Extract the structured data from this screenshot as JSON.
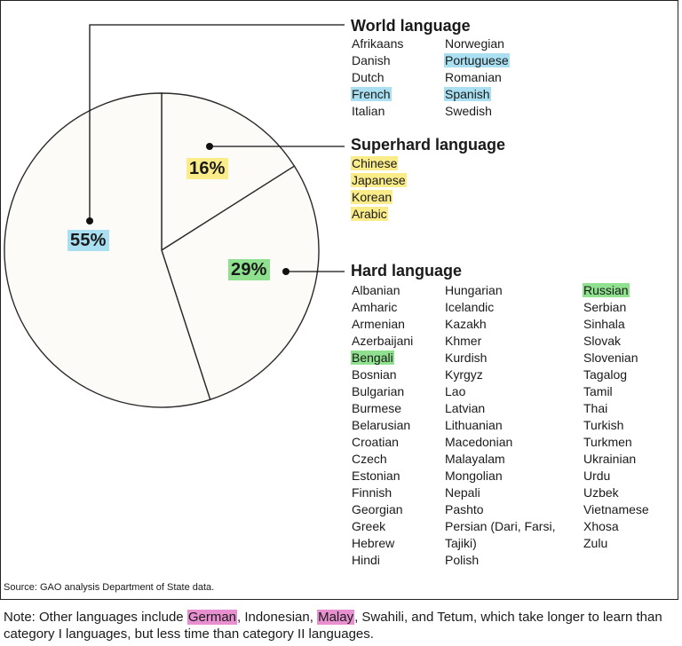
{
  "colors": {
    "world": "#a9dff0",
    "superhard": "#fbec8a",
    "hard": "#8fe08f",
    "note_highlight": "#e88fd0",
    "slice_fill": "#fdfbf8",
    "stroke": "#2a2a2a"
  },
  "chart_data": {
    "type": "pie",
    "slices": [
      {
        "category": "World language",
        "value": 55,
        "label": "55%",
        "color_key": "world"
      },
      {
        "category": "Superhard language",
        "value": 16,
        "label": "16%",
        "color_key": "superhard"
      },
      {
        "category": "Hard language",
        "value": 29,
        "label": "29%",
        "color_key": "hard"
      }
    ]
  },
  "groups": {
    "world": {
      "title": "World language",
      "columns": [
        [
          {
            "name": "Afrikaans"
          },
          {
            "name": "Danish"
          },
          {
            "name": "Dutch"
          },
          {
            "name": "French",
            "highlight": "world"
          },
          {
            "name": "Italian"
          }
        ],
        [
          {
            "name": "Norwegian"
          },
          {
            "name": "Portuguese",
            "highlight": "world"
          },
          {
            "name": "Romanian"
          },
          {
            "name": "Spanish",
            "highlight": "world"
          },
          {
            "name": "Swedish"
          }
        ]
      ]
    },
    "superhard": {
      "title": "Superhard language",
      "columns": [
        [
          {
            "name": "Chinese",
            "highlight": "superhard"
          },
          {
            "name": "Japanese",
            "highlight": "superhard"
          },
          {
            "name": "Korean",
            "highlight": "superhard"
          },
          {
            "name": "Arabic",
            "highlight": "superhard"
          }
        ]
      ]
    },
    "hard": {
      "title": "Hard language",
      "columns": [
        [
          {
            "name": "Albanian"
          },
          {
            "name": "Amharic"
          },
          {
            "name": "Armenian"
          },
          {
            "name": "Azerbaijani"
          },
          {
            "name": "Bengali",
            "highlight": "hard"
          },
          {
            "name": "Bosnian"
          },
          {
            "name": "Bulgarian"
          },
          {
            "name": "Burmese"
          },
          {
            "name": "Belarusian"
          },
          {
            "name": "Croatian"
          },
          {
            "name": "Czech"
          },
          {
            "name": "Estonian"
          },
          {
            "name": "Finnish"
          },
          {
            "name": "Georgian"
          },
          {
            "name": "Greek"
          },
          {
            "name": "Hebrew"
          },
          {
            "name": "Hindi"
          }
        ],
        [
          {
            "name": "Hungarian"
          },
          {
            "name": "Icelandic"
          },
          {
            "name": "Kazakh"
          },
          {
            "name": "Khmer"
          },
          {
            "name": "Kurdish"
          },
          {
            "name": "Kyrgyz"
          },
          {
            "name": "Lao"
          },
          {
            "name": "Latvian"
          },
          {
            "name": "Lithuanian"
          },
          {
            "name": "Macedonian"
          },
          {
            "name": "Malayalam"
          },
          {
            "name": "Mongolian"
          },
          {
            "name": "Nepali"
          },
          {
            "name": "Pashto"
          },
          {
            "name": "Persian (Dari, Farsi,"
          },
          {
            "name": "Tajiki)"
          },
          {
            "name": "Polish"
          }
        ],
        [
          {
            "name": "Russian",
            "highlight": "hard"
          },
          {
            "name": "Serbian"
          },
          {
            "name": "Sinhala"
          },
          {
            "name": "Slovak"
          },
          {
            "name": "Slovenian"
          },
          {
            "name": "Tagalog"
          },
          {
            "name": "Tamil"
          },
          {
            "name": "Thai"
          },
          {
            "name": "Turkish"
          },
          {
            "name": "Turkmen"
          },
          {
            "name": "Ukrainian"
          },
          {
            "name": "Urdu"
          },
          {
            "name": "Uzbek"
          },
          {
            "name": "Vietnamese"
          },
          {
            "name": "Xhosa"
          },
          {
            "name": "Zulu"
          }
        ]
      ]
    }
  },
  "source": "Source: GAO analysis Department of State data.",
  "note": {
    "prefix": "Note: Other languages include ",
    "highlight_1": "German",
    "mid_1": ", Indonesian, ",
    "highlight_2": "Malay",
    "suffix": ", Swahili, and Tetum, which take longer to learn than category I languages, but less time than category II languages."
  }
}
